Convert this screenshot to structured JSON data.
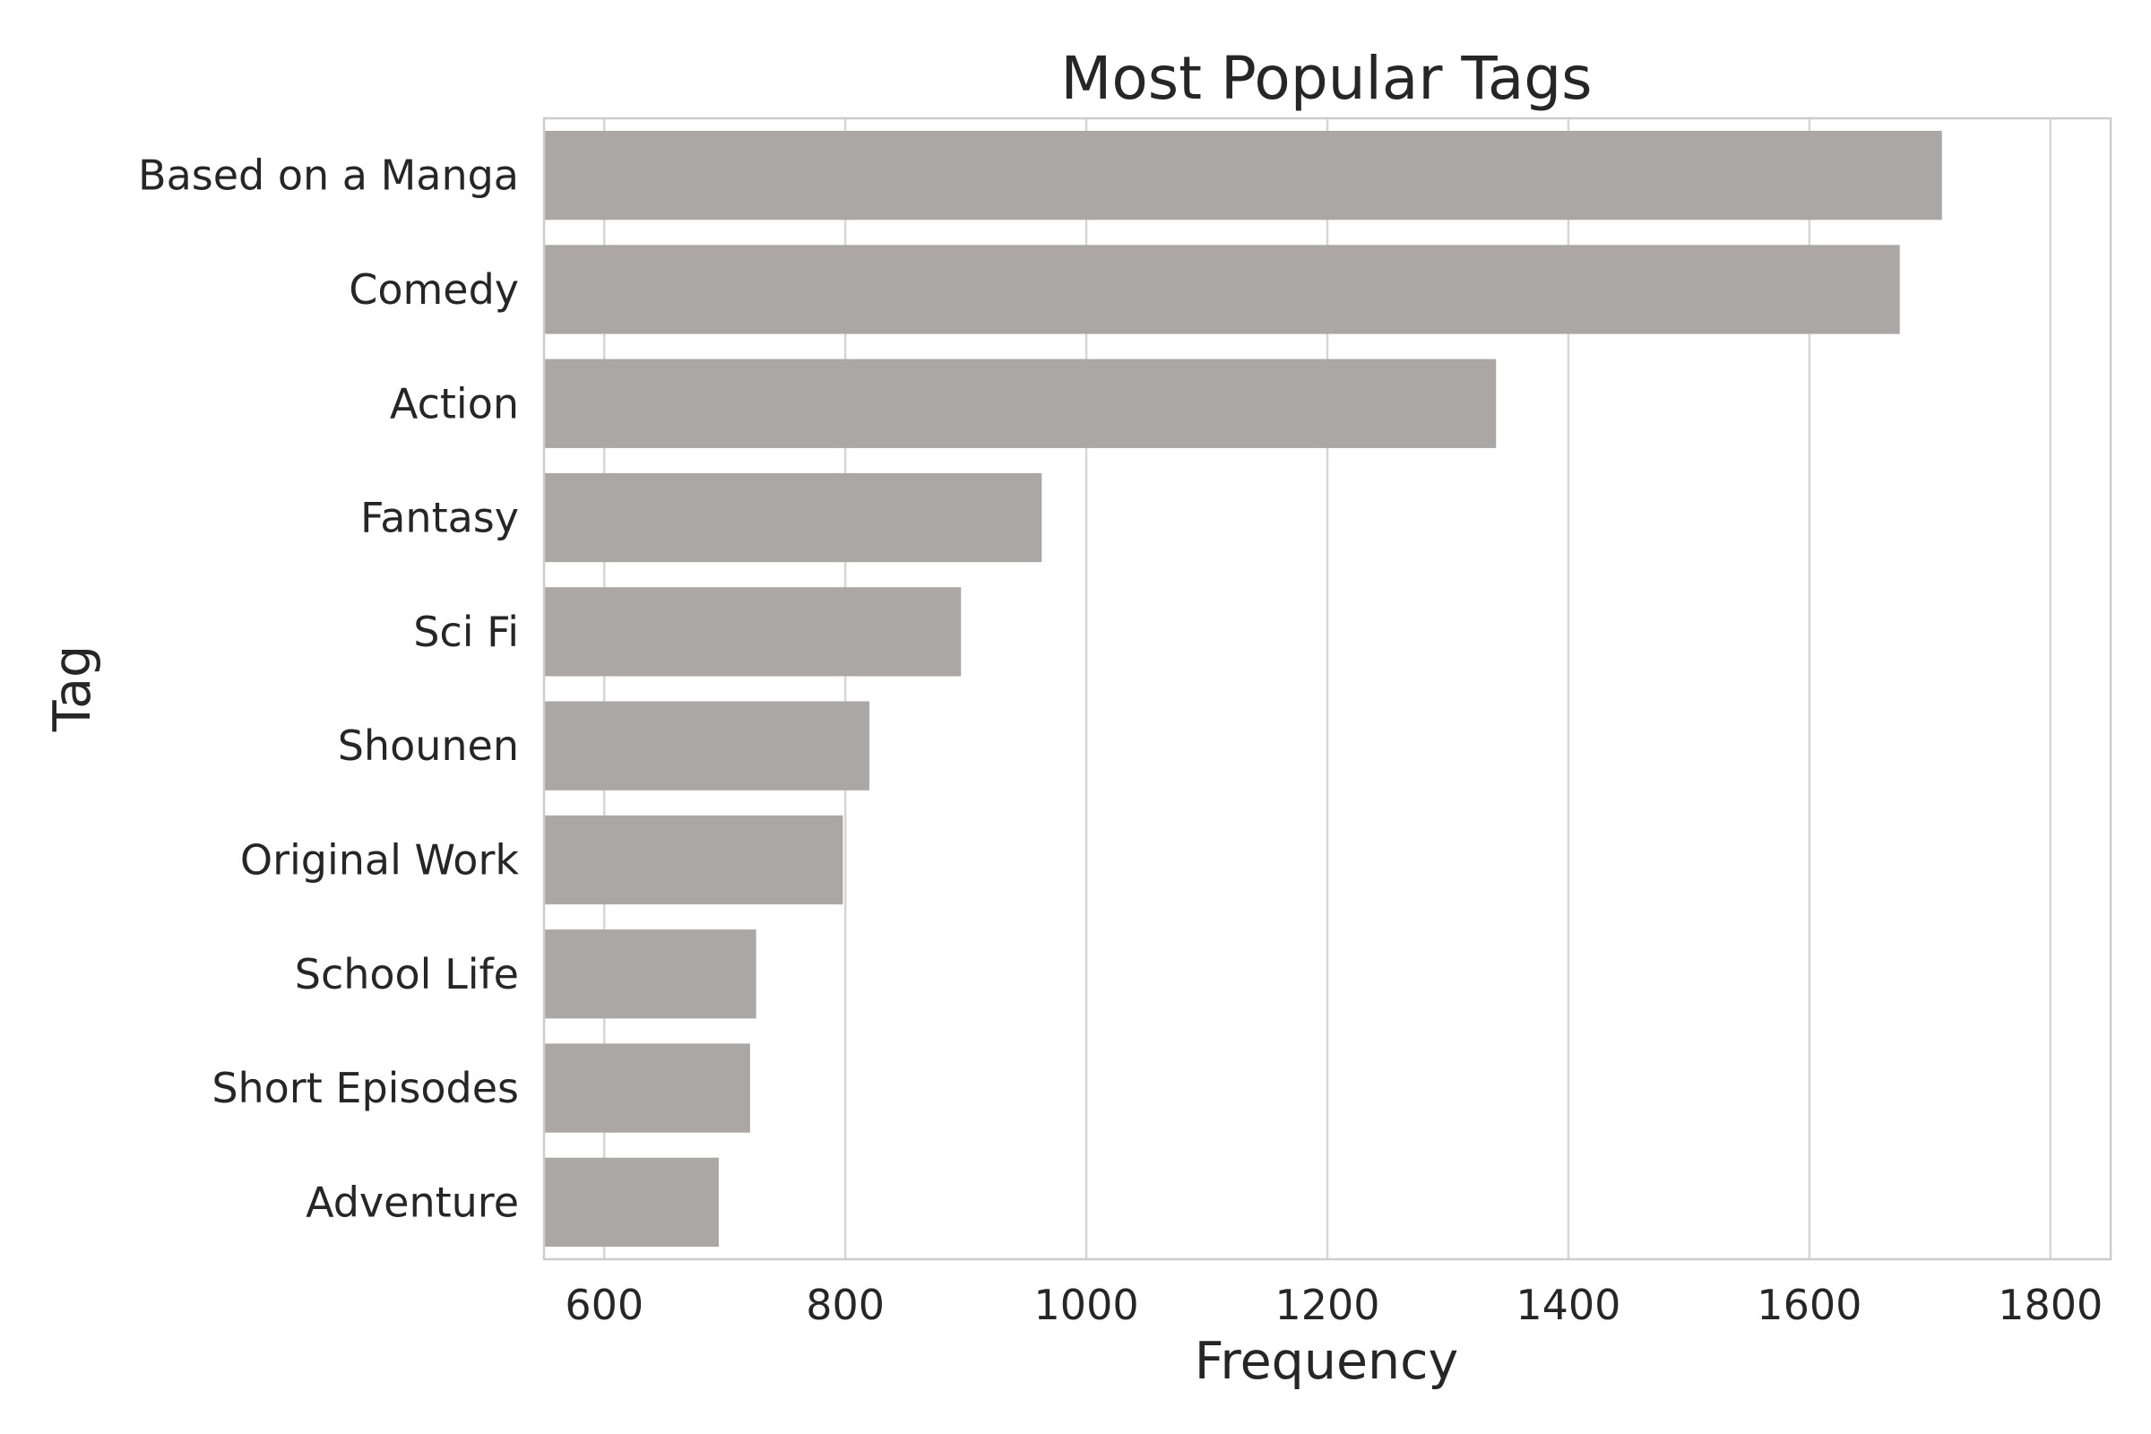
{
  "chart_data": {
    "type": "bar",
    "orientation": "horizontal",
    "title": "Most Popular Tags",
    "xlabel": "Frequency",
    "ylabel": "Tag",
    "categories": [
      "Based on a Manga",
      "Comedy",
      "Action",
      "Fantasy",
      "Sci Fi",
      "Shounen",
      "Original Work",
      "School Life",
      "Short Episodes",
      "Adventure"
    ],
    "values": [
      1710,
      1675,
      1340,
      963,
      896,
      820,
      798,
      726,
      721,
      695
    ],
    "xlim": [
      550,
      1850
    ],
    "xticks": [
      600,
      800,
      1000,
      1200,
      1400,
      1600,
      1800
    ],
    "grid": "vertical",
    "bar_color": "#aba7a6"
  }
}
